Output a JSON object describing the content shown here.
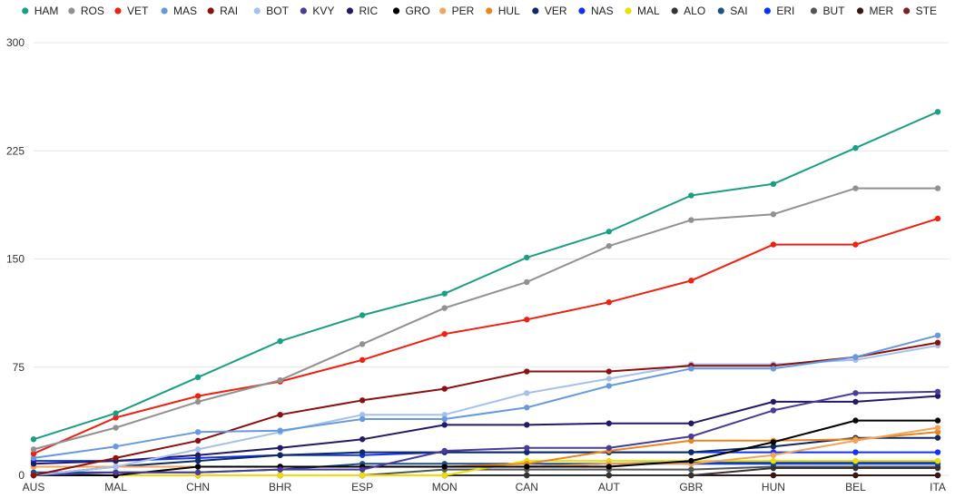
{
  "chart_data": {
    "type": "line",
    "title": "",
    "xlabel": "",
    "ylabel": "",
    "ylim": [
      0,
      300
    ],
    "y_ticks": [
      0,
      75,
      150,
      225,
      300
    ],
    "grid": "horizontal",
    "legend_position": "top",
    "categories": [
      "AUS",
      "MAL",
      "CHN",
      "BHR",
      "ESP",
      "MON",
      "CAN",
      "AUT",
      "GBR",
      "HUN",
      "BEL",
      "ITA"
    ],
    "series": [
      {
        "name": "HAM",
        "color": "#1b9e84",
        "values": [
          25,
          43,
          68,
          93,
          111,
          126,
          151,
          169,
          194,
          202,
          227,
          252
        ]
      },
      {
        "name": "ROS",
        "color": "#919191",
        "values": [
          18,
          33,
          51,
          66,
          91,
          116,
          134,
          159,
          177,
          181,
          199,
          199
        ]
      },
      {
        "name": "VET",
        "color": "#ee2211",
        "values": [
          15,
          40,
          55,
          65,
          80,
          98,
          108,
          120,
          135,
          160,
          160,
          178
        ]
      },
      {
        "name": "MAS",
        "color": "#6699dd",
        "values": [
          12,
          20,
          30,
          31,
          39,
          39,
          47,
          62,
          74,
          74,
          82,
          97
        ]
      },
      {
        "name": "RAI",
        "color": "#8b1111",
        "values": [
          0,
          12,
          24,
          42,
          52,
          60,
          72,
          72,
          76,
          76,
          82,
          92
        ]
      },
      {
        "name": "BOT",
        "color": "#a6c0ee",
        "values": [
          0,
          6,
          18,
          30,
          42,
          42,
          57,
          67,
          77,
          77,
          80,
          90
        ]
      },
      {
        "name": "KVY",
        "color": "#4a3a99",
        "values": [
          0,
          2,
          2,
          4,
          4,
          17,
          19,
          19,
          27,
          45,
          57,
          58
        ]
      },
      {
        "name": "RIC",
        "color": "#221a66",
        "values": [
          8,
          10,
          14,
          19,
          25,
          35,
          35,
          36,
          36,
          51,
          51,
          55
        ]
      },
      {
        "name": "GRO",
        "color": "#000000",
        "values": [
          0,
          0,
          6,
          6,
          6,
          6,
          6,
          6,
          10,
          23,
          38,
          38
        ]
      },
      {
        "name": "PER",
        "color": "#f2a45c",
        "values": [
          6,
          6,
          6,
          6,
          6,
          6,
          6,
          8,
          8,
          14,
          24,
          33
        ]
      },
      {
        "name": "HUL",
        "color": "#e8851c",
        "values": [
          6,
          6,
          6,
          6,
          6,
          6,
          8,
          17,
          24,
          24,
          25,
          30
        ]
      },
      {
        "name": "VER",
        "color": "#0d2a66",
        "values": [
          0,
          6,
          10,
          14,
          16,
          16,
          16,
          16,
          16,
          20,
          26,
          26
        ]
      },
      {
        "name": "NAS",
        "color": "#1133ee",
        "values": [
          10,
          10,
          12,
          14,
          14,
          16,
          16,
          16,
          16,
          16,
          16,
          16
        ]
      },
      {
        "name": "MAL",
        "color": "#eedd00",
        "values": [
          0,
          0,
          0,
          0,
          0,
          0,
          10,
          10,
          10,
          10,
          10,
          10
        ]
      },
      {
        "name": "ALO",
        "color": "#333333",
        "values": [
          0,
          0,
          0,
          0,
          0,
          0,
          0,
          0,
          0,
          5,
          5,
          5
        ]
      },
      {
        "name": "SAI",
        "color": "#1d4f88",
        "values": [
          2,
          2,
          2,
          4,
          8,
          8,
          8,
          8,
          9,
          9,
          9,
          9
        ]
      },
      {
        "name": "ERI",
        "color": "#0033ff",
        "values": [
          6,
          6,
          6,
          6,
          6,
          6,
          6,
          8,
          8,
          8,
          8,
          8
        ]
      },
      {
        "name": "BUT",
        "color": "#555555",
        "values": [
          0,
          0,
          0,
          0,
          0,
          4,
          4,
          4,
          4,
          6,
          6,
          6
        ]
      },
      {
        "name": "MER",
        "color": "#3a1515",
        "values": [
          0,
          0,
          0,
          0,
          0,
          0,
          0,
          0,
          0,
          0,
          0,
          0
        ]
      },
      {
        "name": "STE",
        "color": "#7a2222",
        "values": [
          0,
          0,
          0,
          0,
          0,
          0,
          0,
          0,
          0,
          0,
          0,
          0
        ]
      }
    ]
  }
}
